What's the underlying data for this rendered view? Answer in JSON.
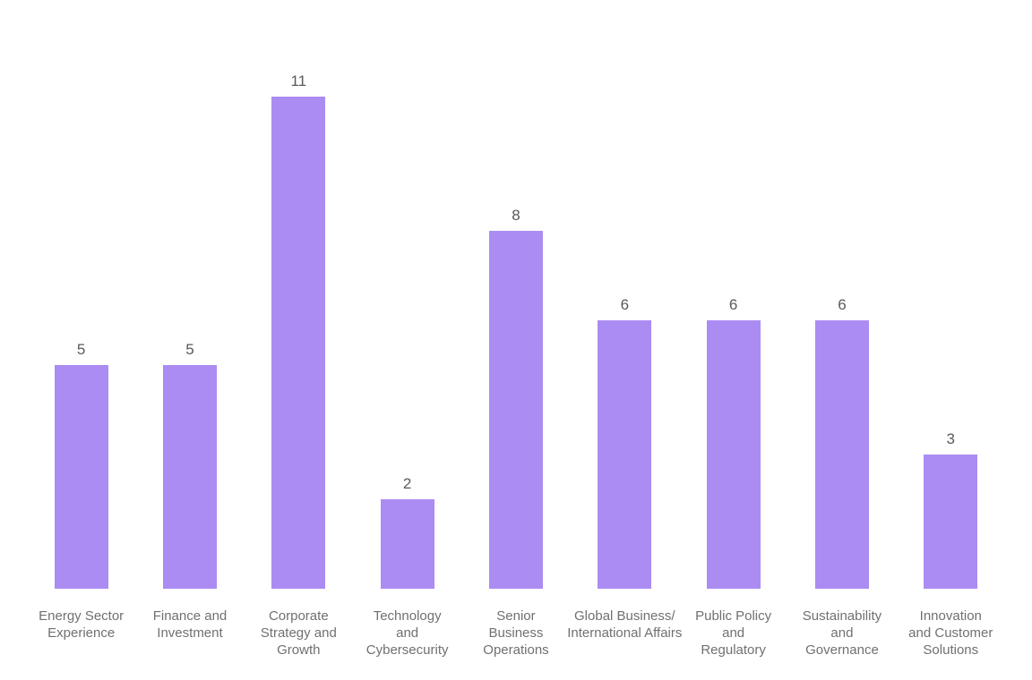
{
  "chart_data": {
    "type": "bar",
    "title": "",
    "xlabel": "",
    "ylabel": "",
    "categories": [
      "Energy Sector Experience",
      "Finance and Investment",
      "Corporate Strategy and Growth",
      "Technology and Cybersecurity",
      "Senior Business Operations",
      "Global Business/International Affairs",
      "Public Policy and Regulatory",
      "Sustainability and Governance",
      "Innovation and Customer Solutions"
    ],
    "category_lines": [
      [
        "Energy Sector",
        "Experience"
      ],
      [
        "Finance and",
        "Investment"
      ],
      [
        "Corporate",
        "Strategy and",
        "Growth"
      ],
      [
        "Technology",
        "and",
        "Cybersecurity"
      ],
      [
        "Senior",
        "Business",
        "Operations"
      ],
      [
        "Global Business/",
        "International Affairs"
      ],
      [
        "Public Policy",
        "and",
        "Regulatory"
      ],
      [
        "Sustainability",
        "and",
        "Governance"
      ],
      [
        "Innovation",
        "and Customer",
        "Solutions"
      ]
    ],
    "values": [
      5,
      5,
      11,
      2,
      8,
      6,
      6,
      6,
      3
    ],
    "ylim": [
      0,
      11
    ],
    "grid": false,
    "axes_visible": false,
    "legend_position": "none",
    "data_labels_position": "above-bars",
    "bar_color": "#ab8cf3",
    "value_label_color": "#58595b",
    "category_label_color": "#707070",
    "background_color": "#ffffff"
  }
}
